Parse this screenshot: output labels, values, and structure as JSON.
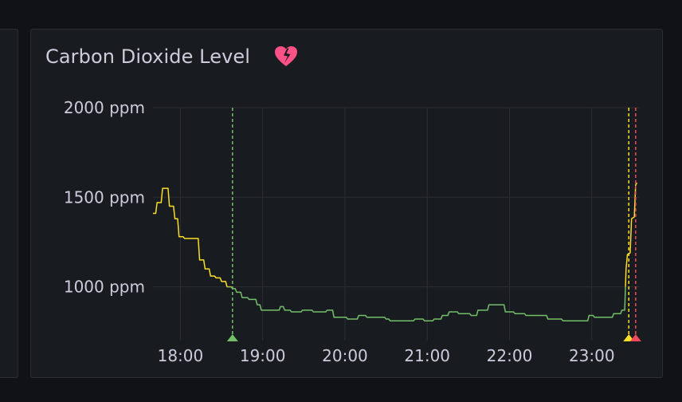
{
  "panel": {
    "title": "Carbon Dioxide Level",
    "alert_state_icon": "broken-heart-icon",
    "alert_color": "#ff5286"
  },
  "colors": {
    "background": "#111217",
    "panel_background": "#181b1f",
    "panel_border": "#2b2d33",
    "grid": "#2c2e34",
    "text": "#ccccdc",
    "series_ok": "#73bf69",
    "series_warning": "#fade2a",
    "series_critical": "#f2495c"
  },
  "chart_data": {
    "type": "line",
    "ylim": [
      700,
      2000
    ],
    "yticks": [
      {
        "value": 1000,
        "label": "1000 ppm"
      },
      {
        "value": 1500,
        "label": "1500 ppm"
      },
      {
        "value": 2000,
        "label": "2000 ppm"
      }
    ],
    "xlim": [
      "17:40",
      "23:35"
    ],
    "xticks": [
      {
        "value": "18:00",
        "label": "18:00"
      },
      {
        "value": "19:00",
        "label": "19:00"
      },
      {
        "value": "20:00",
        "label": "20:00"
      },
      {
        "value": "21:00",
        "label": "21:00"
      },
      {
        "value": "22:00",
        "label": "22:00"
      },
      {
        "value": "23:00",
        "label": "23:00"
      }
    ],
    "grid": true,
    "legend": "none",
    "threshold": 1000,
    "series": [
      {
        "points": [
          [
            "17:40",
            1410
          ],
          [
            "17:42",
            1410
          ],
          [
            "17:43",
            1470
          ],
          [
            "17:46",
            1470
          ],
          [
            "17:47",
            1550
          ],
          [
            "17:51",
            1550
          ],
          [
            "17:52",
            1450
          ],
          [
            "17:55",
            1450
          ],
          [
            "17:56",
            1380
          ],
          [
            "17:58",
            1380
          ],
          [
            "17:59",
            1280
          ],
          [
            "18:02",
            1280
          ],
          [
            "18:03",
            1270
          ],
          [
            "18:13",
            1270
          ],
          [
            "18:14",
            1150
          ],
          [
            "18:17",
            1150
          ],
          [
            "18:18",
            1100
          ],
          [
            "18:21",
            1100
          ],
          [
            "18:22",
            1060
          ],
          [
            "18:25",
            1060
          ],
          [
            "18:26",
            1050
          ],
          [
            "18:29",
            1050
          ],
          [
            "18:30",
            1030
          ],
          [
            "18:33",
            1030
          ],
          [
            "18:34",
            1000
          ],
          [
            "18:37",
            1000
          ],
          [
            "18:38",
            990
          ],
          [
            "18:40",
            990
          ],
          [
            "18:41",
            970
          ],
          [
            "18:44",
            970
          ],
          [
            "18:45",
            940
          ],
          [
            "18:49",
            940
          ],
          [
            "18:50",
            930
          ],
          [
            "18:55",
            930
          ],
          [
            "18:56",
            900
          ],
          [
            "18:58",
            900
          ],
          [
            "18:59",
            870
          ],
          [
            "19:12",
            870
          ],
          [
            "19:13",
            890
          ],
          [
            "19:15",
            890
          ],
          [
            "19:16",
            870
          ],
          [
            "19:20",
            870
          ],
          [
            "19:21",
            860
          ],
          [
            "19:28",
            860
          ],
          [
            "19:29",
            870
          ],
          [
            "19:36",
            870
          ],
          [
            "19:37",
            860
          ],
          [
            "19:46",
            860
          ],
          [
            "19:47",
            870
          ],
          [
            "19:51",
            870
          ],
          [
            "19:52",
            830
          ],
          [
            "20:01",
            830
          ],
          [
            "20:02",
            820
          ],
          [
            "20:09",
            820
          ],
          [
            "20:10",
            840
          ],
          [
            "20:15",
            840
          ],
          [
            "20:16",
            830
          ],
          [
            "20:29",
            830
          ],
          [
            "20:30",
            820
          ],
          [
            "20:32",
            820
          ],
          [
            "20:33",
            810
          ],
          [
            "20:50",
            810
          ],
          [
            "20:51",
            820
          ],
          [
            "20:57",
            820
          ],
          [
            "20:58",
            810
          ],
          [
            "21:04",
            810
          ],
          [
            "21:05",
            820
          ],
          [
            "21:10",
            820
          ],
          [
            "21:11",
            840
          ],
          [
            "21:15",
            840
          ],
          [
            "21:16",
            860
          ],
          [
            "21:22",
            860
          ],
          [
            "21:23",
            850
          ],
          [
            "21:31",
            850
          ],
          [
            "21:32",
            840
          ],
          [
            "21:36",
            840
          ],
          [
            "21:37",
            870
          ],
          [
            "21:44",
            870
          ],
          [
            "21:45",
            900
          ],
          [
            "21:56",
            900
          ],
          [
            "21:57",
            860
          ],
          [
            "22:03",
            860
          ],
          [
            "22:04",
            850
          ],
          [
            "22:11",
            850
          ],
          [
            "22:12",
            840
          ],
          [
            "22:27",
            840
          ],
          [
            "22:28",
            820
          ],
          [
            "22:38",
            820
          ],
          [
            "22:39",
            810
          ],
          [
            "22:57",
            810
          ],
          [
            "22:58",
            840
          ],
          [
            "23:01",
            840
          ],
          [
            "23:02",
            830
          ],
          [
            "23:15",
            830
          ],
          [
            "23:16",
            850
          ],
          [
            "23:21",
            850
          ],
          [
            "23:22",
            870
          ],
          [
            "23:24",
            870
          ],
          [
            "23:25",
            1100
          ],
          [
            "23:26",
            1180
          ],
          [
            "23:28",
            1190
          ],
          [
            "23:29",
            1380
          ],
          [
            "23:31",
            1390
          ],
          [
            "23:32",
            1570
          ],
          [
            "23:33",
            1580
          ]
        ]
      }
    ],
    "annotations": [
      {
        "time": "18:38",
        "color": "#73bf69",
        "marker": "triangle-up"
      },
      {
        "time": "23:27",
        "color": "#fade2a",
        "marker": "triangle-up"
      },
      {
        "time": "23:32",
        "color": "#f2495c",
        "marker": "triangle-up"
      }
    ]
  }
}
